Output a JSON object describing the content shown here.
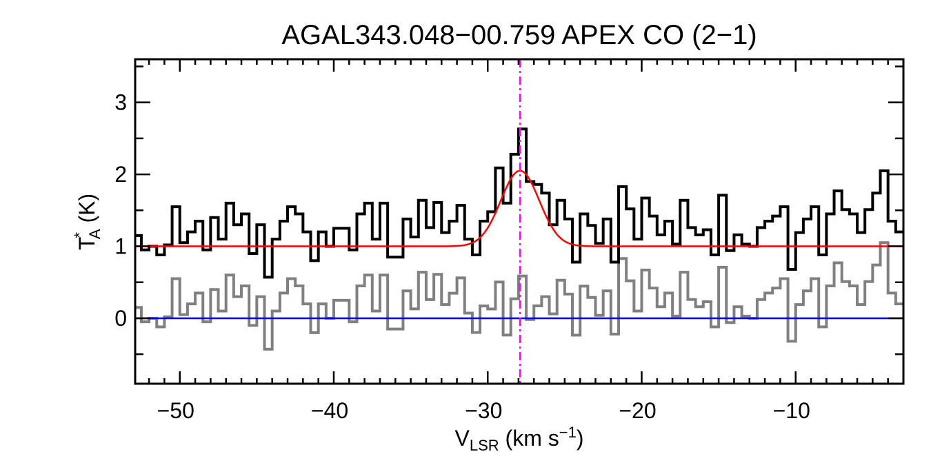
{
  "chart_data": {
    "type": "line",
    "title": "AGAL343.048−00.759  APEX CO (2−1)",
    "xlabel": {
      "main": "V",
      "sub": "LSR",
      "rest": " (km s",
      "sup": "−1",
      "close": ")"
    },
    "ylabel": {
      "main": "T",
      "sup": "*",
      "sub": "A",
      "rest": " (K)"
    },
    "xlim": [
      -52.9,
      -3.0
    ],
    "ylim": [
      -0.91,
      3.6
    ],
    "x_ticks": [
      -50,
      -40,
      -30,
      -20,
      -10
    ],
    "x_tick_labels": [
      "−50",
      "−40",
      "−30",
      "−20",
      "−10"
    ],
    "y_ticks": [
      0,
      1,
      2,
      3
    ],
    "y_tick_labels": [
      "0",
      "1",
      "2",
      "3"
    ],
    "x_minor_step": 1,
    "y_minor_step": 0.5,
    "spectrum": {
      "x_start": -52.75,
      "channel_width": 0.5,
      "color": "#000000",
      "values": [
        1.15,
        0.95,
        1.0,
        0.88,
        1.02,
        1.55,
        1.05,
        1.2,
        1.35,
        0.95,
        1.4,
        1.1,
        1.6,
        1.3,
        1.45,
        0.9,
        1.3,
        0.57,
        1.1,
        1.35,
        1.55,
        1.45,
        1.2,
        0.8,
        1.2,
        1.0,
        1.25,
        1.25,
        0.95,
        1.45,
        1.6,
        1.1,
        1.6,
        0.85,
        0.85,
        1.38,
        1.13,
        1.64,
        1.26,
        1.61,
        1.19,
        1.35,
        1.57,
        1.1,
        0.88,
        1.35,
        1.48,
        2.09,
        1.6,
        2.28,
        2.63,
        1.9,
        1.86,
        1.74,
        1.3,
        1.64,
        1.38,
        0.78,
        1.45,
        1.29,
        1.04,
        1.38,
        0.78,
        1.83,
        1.52,
        1.1,
        1.67,
        1.42,
        1.16,
        1.35,
        1.03,
        1.64,
        1.26,
        1.16,
        1.23,
        0.88,
        1.71,
        0.94,
        1.16,
        1.03,
        1.0,
        1.26,
        1.35,
        1.42,
        1.55,
        0.68,
        1.19,
        1.38,
        1.55,
        0.88,
        1.45,
        1.77,
        1.51,
        1.45,
        1.19,
        1.51,
        1.74,
        2.05,
        1.35,
        1.2
      ]
    },
    "gaussian_fit": {
      "baseline": 1.0,
      "amplitude": 1.05,
      "center": -27.9,
      "sigma": 1.25,
      "color": "#ff0000"
    },
    "residual": {
      "color": "#808080",
      "offset": 0
    },
    "zero_line": {
      "value": 0,
      "color": "#0000ff"
    },
    "velocity_marker": {
      "value": -27.9,
      "color": "#ff00ff",
      "style": "dash-dot"
    }
  }
}
